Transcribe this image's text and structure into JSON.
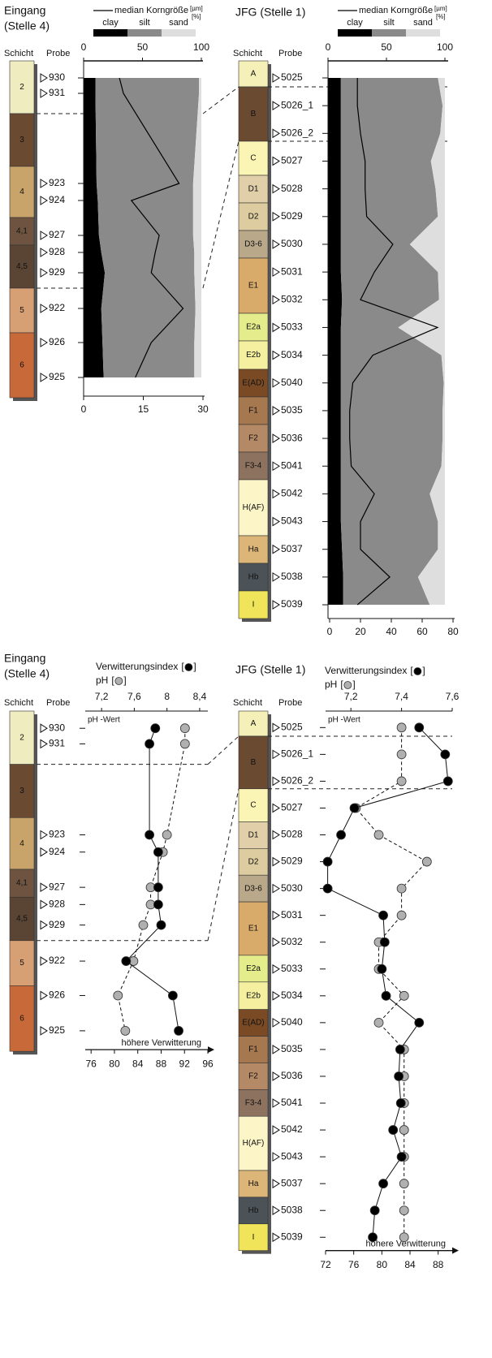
{
  "chart_data": [
    {
      "type": "area",
      "title": "Eingang",
      "subtitle": "(Stelle 4)",
      "layer_header": "Schicht",
      "category_header": "Probe",
      "layers": [
        {
          "label": "2",
          "color": "#efecc0"
        },
        {
          "label": "3",
          "color": "#6b4a32"
        },
        {
          "label": "4",
          "color": "#c9a46a"
        },
        {
          "label": "4,1",
          "color": "#6e5440"
        },
        {
          "label": "4,5",
          "color": "#5a4535"
        },
        {
          "label": "5",
          "color": "#d7a074"
        },
        {
          "label": "6",
          "color": "#c8693a"
        }
      ],
      "categories": [
        "930",
        "931",
        "923",
        "924",
        "927",
        "928",
        "929",
        "922",
        "926",
        "925"
      ],
      "xlim": [
        0,
        100
      ],
      "xticks": [
        0,
        50,
        100
      ],
      "x_unit": "[%]",
      "x2lim": [
        0,
        30
      ],
      "x2ticks": [
        0,
        15,
        30
      ],
      "x2_unit": "[µm]",
      "series": [
        {
          "name": "clay",
          "color": "#000000",
          "values": [
            10,
            10,
            11,
            12,
            13,
            15,
            18,
            15,
            16,
            17
          ]
        },
        {
          "name": "silt",
          "color": "#8a8a8a",
          "values": [
            88,
            88,
            82,
            81,
            80,
            79,
            76,
            80,
            78,
            77
          ]
        },
        {
          "name": "sand",
          "color": "#dedede",
          "values": [
            2,
            2,
            7,
            7,
            7,
            6,
            6,
            5,
            6,
            6
          ]
        },
        {
          "name": "median Korngröße",
          "color": "#000000",
          "axis": "x2",
          "values": [
            9,
            10,
            24,
            12,
            19,
            18,
            17,
            25,
            17,
            13
          ]
        }
      ]
    },
    {
      "type": "area",
      "title": "JFG (Stelle 1)",
      "layer_header": "Schicht",
      "category_header": "Probe",
      "layers": [
        {
          "label": "A",
          "color": "#f4f0b8"
        },
        {
          "label": "B",
          "color": "#6b4a32"
        },
        {
          "label": "C",
          "color": "#fbf5b5"
        },
        {
          "label": "D1",
          "color": "#e0cfa8"
        },
        {
          "label": "D2",
          "color": "#ddcca0"
        },
        {
          "label": "D3-6",
          "color": "#b9a88a"
        },
        {
          "label": "E1",
          "color": "#d9ab6a"
        },
        {
          "label": "E2a",
          "color": "#e4ec8c"
        },
        {
          "label": "E2b",
          "color": "#f5f0a0"
        },
        {
          "label": "E(AD)",
          "color": "#7a4a25"
        },
        {
          "label": "F1",
          "color": "#a6784f"
        },
        {
          "label": "F2",
          "color": "#b38a65"
        },
        {
          "label": "F3-4",
          "color": "#8d7260"
        },
        {
          "label": "H(AF)",
          "color": "#fbf5c8"
        },
        {
          "label": "Ha",
          "color": "#dcb678"
        },
        {
          "label": "Hb",
          "color": "#4c5358"
        },
        {
          "label": "I",
          "color": "#f0e45a"
        }
      ],
      "categories": [
        "5025",
        "5026_1",
        "5026_2",
        "5027",
        "5028",
        "5029",
        "5030",
        "5031",
        "5032",
        "5033",
        "5034",
        "5040",
        "5035",
        "5036",
        "5041",
        "5042",
        "5043",
        "5037",
        "5038",
        "5039"
      ],
      "xlim": [
        0,
        100
      ],
      "xticks": [
        0,
        50,
        100
      ],
      "x_unit": "[%]",
      "x2lim": [
        0,
        80
      ],
      "x2ticks": [
        0,
        20,
        40,
        60,
        80
      ],
      "x2_unit": "[µm]",
      "series": [
        {
          "name": "clay",
          "color": "#000000",
          "values": [
            11,
            11,
            11,
            11,
            11,
            11,
            11,
            11,
            12,
            11,
            11,
            11,
            11,
            11,
            11,
            11,
            11,
            12,
            13,
            13
          ]
        },
        {
          "name": "silt",
          "color": "#8a8a8a",
          "values": [
            83,
            87,
            85,
            77,
            81,
            83,
            59,
            83,
            83,
            49,
            86,
            88,
            87,
            87,
            86,
            76,
            83,
            82,
            64,
            74
          ]
        },
        {
          "name": "sand",
          "color": "#dedede",
          "values": [
            6,
            2,
            4,
            12,
            8,
            6,
            30,
            6,
            5,
            40,
            3,
            1,
            2,
            2,
            3,
            13,
            6,
            6,
            23,
            13
          ]
        },
        {
          "name": "median Korngröße",
          "color": "#000000",
          "axis": "x2",
          "values": [
            18,
            18,
            20,
            23,
            23,
            24,
            41,
            29,
            20,
            70,
            28,
            15,
            13,
            13,
            14,
            29,
            20,
            20,
            39,
            18
          ]
        }
      ]
    },
    {
      "type": "line",
      "title": "Eingang",
      "subtitle": "(Stelle 4)",
      "layer_header": "Schicht",
      "category_header": "Probe",
      "layers": [
        {
          "label": "2",
          "color": "#efecc0"
        },
        {
          "label": "3",
          "color": "#6b4a32"
        },
        {
          "label": "4",
          "color": "#c9a46a"
        },
        {
          "label": "4,1",
          "color": "#6e5440"
        },
        {
          "label": "4,5",
          "color": "#5a4535"
        },
        {
          "label": "5",
          "color": "#d7a074"
        },
        {
          "label": "6",
          "color": "#c8693a"
        }
      ],
      "categories": [
        "930",
        "931",
        "923",
        "924",
        "927",
        "928",
        "929",
        "922",
        "926",
        "925"
      ],
      "xlim": [
        75,
        96
      ],
      "xticks": [
        76,
        80,
        84,
        88,
        92,
        96
      ],
      "x2lim": [
        7.0,
        8.5
      ],
      "x2ticks": [
        {
          "value": 7.2,
          "label": "7,2"
        },
        {
          "value": 7.6,
          "label": "7,6"
        },
        8,
        {
          "value": 8.4,
          "label": "8,4"
        }
      ],
      "legend_brackets": [
        "[",
        "]"
      ],
      "annotations": [
        "pH -Wert",
        "höhere Verwitterung"
      ],
      "series": [
        {
          "name": "Verwitterungsindex",
          "color": "#000000",
          "values": [
            87,
            86,
            86,
            87.5,
            87.5,
            87.5,
            88,
            82,
            90,
            91
          ]
        },
        {
          "name": "pH",
          "color": "#b0b0b0",
          "axis": "x2",
          "line_style": "dashed",
          "values": [
            8.22,
            8.22,
            8.0,
            7.95,
            7.8,
            7.8,
            7.71,
            7.59,
            7.4,
            7.49
          ]
        }
      ]
    },
    {
      "type": "line",
      "title": "JFG (Stelle 1)",
      "layer_header": "Schicht",
      "category_header": "Probe",
      "layers": [
        {
          "label": "A",
          "color": "#f4f0b8"
        },
        {
          "label": "B",
          "color": "#6b4a32"
        },
        {
          "label": "C",
          "color": "#fbf5b5"
        },
        {
          "label": "D1",
          "color": "#e0cfa8"
        },
        {
          "label": "D2",
          "color": "#ddcca0"
        },
        {
          "label": "D3-6",
          "color": "#b9a88a"
        },
        {
          "label": "E1",
          "color": "#d9ab6a"
        },
        {
          "label": "E2a",
          "color": "#e4ec8c"
        },
        {
          "label": "E2b",
          "color": "#f5f0a0"
        },
        {
          "label": "E(AD)",
          "color": "#7a4a25"
        },
        {
          "label": "F1",
          "color": "#a6784f"
        },
        {
          "label": "F2",
          "color": "#b38a65"
        },
        {
          "label": "F3-4",
          "color": "#8d7260"
        },
        {
          "label": "H(AF)",
          "color": "#fbf5c8"
        },
        {
          "label": "Ha",
          "color": "#dcb678"
        },
        {
          "label": "Hb",
          "color": "#4c5358"
        },
        {
          "label": "I",
          "color": "#f0e45a"
        }
      ],
      "categories": [
        "5025",
        "5026_1",
        "5026_2",
        "5027",
        "5028",
        "5029",
        "5030",
        "5031",
        "5032",
        "5033",
        "5034",
        "5040",
        "5035",
        "5036",
        "5041",
        "5042",
        "5043",
        "5037",
        "5038",
        "5039"
      ],
      "xlim": [
        72,
        90
      ],
      "xticks": [
        72,
        76,
        80,
        84,
        88
      ],
      "x2lim": [
        7.1,
        7.6
      ],
      "x2ticks": [
        {
          "value": 7.2,
          "label": "7,2"
        },
        {
          "value": 7.4,
          "label": "7,4"
        },
        {
          "value": 7.6,
          "label": "7,6"
        }
      ],
      "legend_brackets": [
        "[",
        "]"
      ],
      "annotations": [
        "pH -Wert",
        "höhere Verwitterung"
      ],
      "series": [
        {
          "name": "Verwitterungsindex",
          "color": "#000000",
          "values": [
            85.3,
            89,
            89.4,
            76.1,
            74.2,
            72.3,
            72.3,
            80.2,
            80.4,
            80,
            80.6,
            85.3,
            82.6,
            82.4,
            82.7,
            81.6,
            82.8,
            80.2,
            79,
            78.7
          ]
        },
        {
          "name": "pH",
          "color": "#b0b0b0",
          "axis": "x2",
          "line_style": "dashed",
          "values": [
            7.4,
            7.4,
            7.4,
            7.22,
            7.31,
            7.5,
            7.4,
            7.4,
            7.31,
            7.31,
            7.41,
            7.31,
            7.41,
            7.41,
            7.41,
            7.41,
            7.41,
            7.41,
            7.41,
            7.41
          ]
        }
      ]
    }
  ]
}
